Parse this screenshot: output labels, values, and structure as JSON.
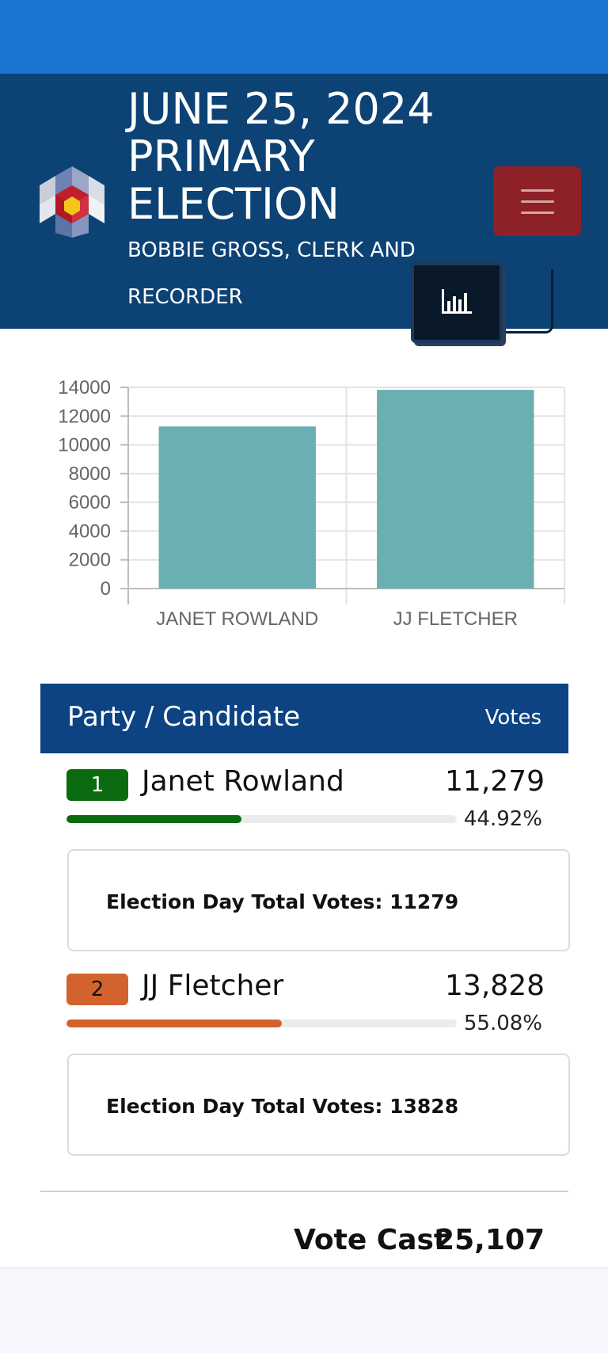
{
  "header": {
    "title_lines": [
      "JUNE 25, 2024",
      "PRIMARY",
      "ELECTION"
    ],
    "subtitle_lines": [
      "BOBBIE GROSS, CLERK AND",
      "RECORDER"
    ]
  },
  "icons": {
    "menu": "hamburger-menu-icon",
    "chart_toggle": "bar-chart-icon",
    "logo": "colorado-logo-icon"
  },
  "colors": {
    "top_bar": "#1976d2",
    "header_bg": "#0d4275",
    "menu_button": "#8d2127",
    "bar_color": "#6aafb1",
    "candidate1": "#0a6b10",
    "candidate2": "#d3632e"
  },
  "chart_data": {
    "type": "bar",
    "categories": [
      "JANET ROWLAND",
      "JJ FLETCHER"
    ],
    "values": [
      11279,
      13828
    ],
    "y_ticks": [
      "14000",
      "12000",
      "10000",
      "8000",
      "6000",
      "4000",
      "2000",
      "0"
    ],
    "ylim": [
      0,
      14000
    ],
    "grid": true
  },
  "table": {
    "header_left": "Party / Candidate",
    "header_right": "Votes",
    "candidates": [
      {
        "rank": "1",
        "name": "Janet Rowland",
        "votes": "11,279",
        "percent": "44.92%",
        "share": 0.4492,
        "detail": "Election Day Total Votes: 11279"
      },
      {
        "rank": "2",
        "name": "JJ Fletcher",
        "votes": "13,828",
        "percent": "55.08%",
        "share": 0.5508,
        "detail": "Election Day Total Votes: 13828"
      }
    ]
  },
  "totals": {
    "label": "Vote Cast",
    "value": "25,107"
  }
}
